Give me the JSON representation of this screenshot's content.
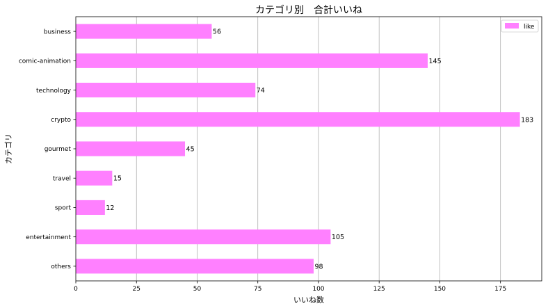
{
  "chart_data": {
    "type": "bar",
    "orientation": "horizontal",
    "title": "カテゴリ別　合計いいね",
    "xlabel": "いいね数",
    "ylabel": "カテゴリ",
    "categories": [
      "business",
      "comic-animation",
      "technology",
      "crypto",
      "gourmet",
      "travel",
      "sport",
      "entertainment",
      "others"
    ],
    "series": [
      {
        "name": "like",
        "values": [
          56,
          145,
          74,
          183,
          45,
          15,
          12,
          105,
          98
        ],
        "color": "#ff80ff"
      }
    ],
    "xlim": [
      0,
      192
    ],
    "xticks": [
      0,
      25,
      50,
      75,
      100,
      125,
      150,
      175
    ],
    "grid": "vertical",
    "legend": "top-right",
    "data_labels": true
  }
}
